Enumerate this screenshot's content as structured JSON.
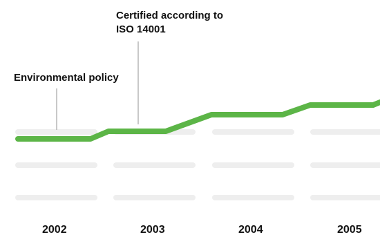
{
  "annotations": {
    "environmental_policy": "Environmental policy",
    "iso_line1": "Certified according to",
    "iso_line2": "ISO 14001"
  },
  "years": [
    "2002",
    "2003",
    "2004",
    "2005"
  ],
  "colors": {
    "progress_line": "#5cb547",
    "placeholder_bar": "#eeeeee",
    "leader_line": "#b5b5b5",
    "text": "#111111"
  }
}
